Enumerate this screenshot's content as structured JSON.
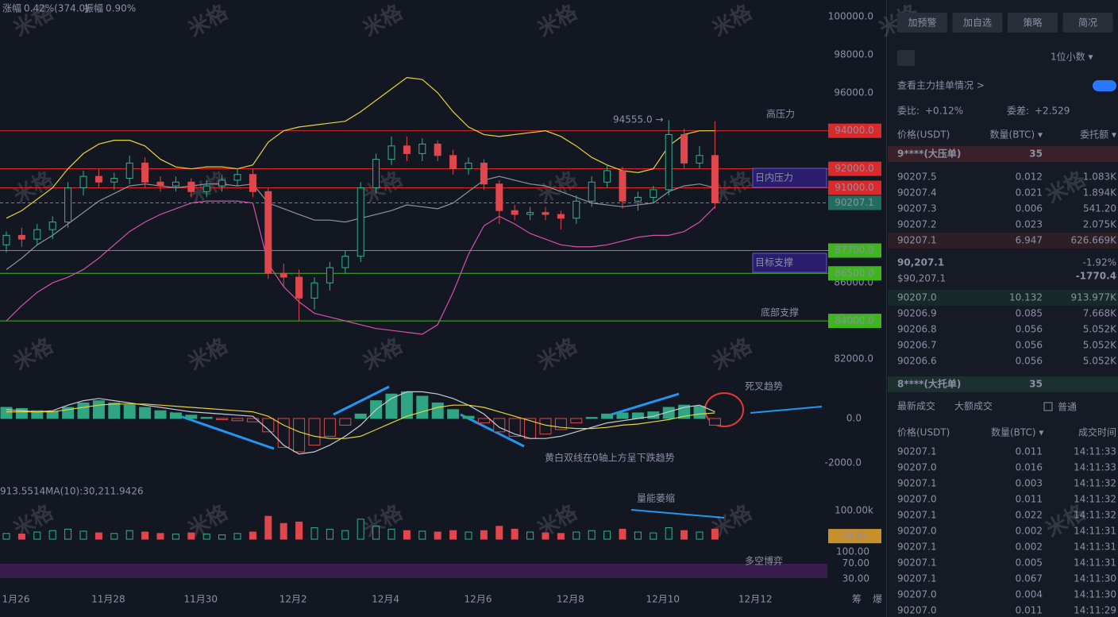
{
  "header": {
    "change_label": "涨幅",
    "change": "0.42%(374.0)",
    "amp_label": "振幅",
    "amp": "0.90%"
  },
  "watermark": "米格",
  "chart_data": {
    "type": "candlestick",
    "xlabels": [
      "1月26",
      "11月28",
      "11月30",
      "12月2",
      "12月4",
      "12月6",
      "12月8",
      "12月10",
      "12月12"
    ],
    "ohlc": [
      [
        88000,
        88700,
        87600,
        88500
      ],
      [
        88500,
        88900,
        87900,
        88300
      ],
      [
        88300,
        89100,
        88000,
        88800
      ],
      [
        88800,
        89500,
        88300,
        89200
      ],
      [
        89200,
        91300,
        88900,
        91000
      ],
      [
        91000,
        91900,
        90600,
        91600
      ],
      [
        91600,
        92000,
        91000,
        91300
      ],
      [
        91300,
        91800,
        90900,
        91500
      ],
      [
        91500,
        92700,
        91200,
        92300
      ],
      [
        92300,
        92600,
        91000,
        91300
      ],
      [
        91300,
        91600,
        90800,
        91100
      ],
      [
        91100,
        91600,
        90800,
        91300
      ],
      [
        91300,
        91500,
        90500,
        90800
      ],
      [
        90800,
        91400,
        90500,
        91100
      ],
      [
        91100,
        91700,
        90800,
        91400
      ],
      [
        91400,
        92000,
        91100,
        91700
      ],
      [
        91700,
        92000,
        90500,
        90800
      ],
      [
        90800,
        91000,
        86200,
        86500
      ],
      [
        86500,
        87000,
        85800,
        86300
      ],
      [
        86300,
        86700,
        84000,
        85200
      ],
      [
        85200,
        86300,
        84600,
        86000
      ],
      [
        86000,
        87100,
        85600,
        86800
      ],
      [
        86800,
        87700,
        86500,
        87400
      ],
      [
        87400,
        91300,
        87100,
        91000
      ],
      [
        91000,
        92800,
        90700,
        92500
      ],
      [
        92500,
        93700,
        92200,
        93200
      ],
      [
        93200,
        93700,
        92400,
        92800
      ],
      [
        92800,
        93600,
        92400,
        93300
      ],
      [
        93300,
        93500,
        92400,
        92700
      ],
      [
        92700,
        93000,
        91700,
        92000
      ],
      [
        92000,
        92600,
        91700,
        92300
      ],
      [
        92300,
        92500,
        90900,
        91200
      ],
      [
        91200,
        91400,
        89100,
        89800
      ],
      [
        89800,
        90100,
        89300,
        89600
      ],
      [
        89600,
        90000,
        89300,
        89700
      ],
      [
        89700,
        90000,
        89300,
        89600
      ],
      [
        89600,
        89800,
        88800,
        89400
      ],
      [
        89400,
        90600,
        89100,
        90300
      ],
      [
        90300,
        91600,
        90000,
        91300
      ],
      [
        91300,
        92200,
        91000,
        91900
      ],
      [
        91900,
        92100,
        89900,
        90300
      ],
      [
        90300,
        90800,
        89800,
        90500
      ],
      [
        90500,
        91100,
        90200,
        90900
      ],
      [
        90900,
        94555,
        90600,
        93800
      ],
      [
        93800,
        94100,
        92000,
        92300
      ],
      [
        92300,
        93200,
        92000,
        92700
      ],
      [
        92700,
        94500,
        89900,
        90207.1
      ]
    ],
    "boll_upper": [
      89400,
      89800,
      90400,
      91000,
      92000,
      92800,
      93300,
      93500,
      93500,
      93200,
      92500,
      92100,
      92000,
      92100,
      92100,
      92000,
      92200,
      93400,
      94000,
      94200,
      94300,
      94400,
      94500,
      95000,
      95600,
      96200,
      96800,
      96700,
      96000,
      95000,
      94200,
      93800,
      93700,
      93800,
      93900,
      94000,
      93700,
      93200,
      92600,
      92200,
      91900,
      91800,
      92000,
      93200,
      93800,
      94000,
      94000
    ],
    "boll_mid": [
      86700,
      87300,
      88000,
      88500,
      89100,
      89700,
      90300,
      90700,
      91100,
      91200,
      91100,
      91000,
      91100,
      91200,
      91200,
      91100,
      91200,
      90200,
      89900,
      89600,
      89300,
      89300,
      89200,
      89400,
      89600,
      89800,
      90100,
      90000,
      89900,
      90200,
      90800,
      91400,
      91600,
      91400,
      91200,
      91100,
      90800,
      90500,
      90200,
      90100,
      90000,
      90100,
      90200,
      90800,
      91100,
      91200,
      91000
    ],
    "boll_lower": [
      84000,
      84800,
      85500,
      86000,
      86300,
      86700,
      87300,
      88000,
      88700,
      89200,
      89600,
      89900,
      90200,
      90300,
      90300,
      90300,
      90200,
      87000,
      85800,
      85000,
      84400,
      84200,
      84000,
      83800,
      83600,
      83500,
      83400,
      83300,
      83800,
      85500,
      87500,
      89000,
      89500,
      89100,
      88600,
      88300,
      88000,
      87900,
      87900,
      88000,
      88200,
      88400,
      88500,
      88500,
      88700,
      89200,
      90000
    ],
    "yticks": [
      {
        "value": 100000,
        "label": "100000.0"
      },
      {
        "value": 98000,
        "label": "98000.0"
      },
      {
        "value": 96000,
        "label": "96000.0"
      },
      {
        "value": 86000,
        "label": "86000.0"
      },
      {
        "value": 82000,
        "label": "82000.0"
      }
    ],
    "levels": [
      {
        "value": 94000,
        "label": "94000.0",
        "color": "#d92b2b"
      },
      {
        "value": 92000,
        "label": "92000.0",
        "color": "#d92b2b"
      },
      {
        "value": 91000,
        "label": "91000.0",
        "color": "#d92b2b"
      },
      {
        "value": 90207.1,
        "label": "90207.1",
        "color": "#1f6e5e"
      },
      {
        "value": 87700,
        "label": "87700.0",
        "color": "#3fb51f"
      },
      {
        "value": 86500,
        "label": "86500.0",
        "color": "#3fb51f"
      },
      {
        "value": 84000,
        "label": "84000.0",
        "color": "#3fb51f"
      }
    ],
    "high_label": "94555.0 →",
    "zones": [
      "高压力",
      "日内压力",
      "目标支撑",
      "底部支撑"
    ],
    "macd_hist": [
      500,
      450,
      350,
      300,
      500,
      700,
      800,
      700,
      600,
      500,
      350,
      250,
      150,
      50,
      -50,
      -100,
      -150,
      -600,
      -1300,
      -1500,
      -1200,
      -800,
      -300,
      200,
      800,
      1100,
      1200,
      1000,
      700,
      400,
      100,
      -200,
      -600,
      -800,
      -900,
      -700,
      -500,
      -200,
      50,
      200,
      250,
      250,
      300,
      500,
      600,
      550,
      -300
    ],
    "macd_dif": [
      400,
      350,
      300,
      350,
      600,
      800,
      900,
      800,
      700,
      600,
      500,
      400,
      300,
      250,
      200,
      150,
      100,
      -500,
      -1200,
      -1600,
      -1500,
      -1200,
      -800,
      -300,
      400,
      900,
      1200,
      1200,
      1100,
      900,
      600,
      200,
      -400,
      -700,
      -900,
      -900,
      -800,
      -600,
      -400,
      -200,
      -100,
      0,
      100,
      300,
      500,
      600,
      300
    ],
    "macd_dea": [
      300,
      300,
      300,
      300,
      400,
      500,
      600,
      650,
      650,
      650,
      600,
      550,
      500,
      450,
      400,
      350,
      300,
      100,
      -300,
      -600,
      -800,
      -900,
      -900,
      -800,
      -500,
      -200,
      100,
      300,
      500,
      600,
      600,
      500,
      300,
      100,
      -100,
      -300,
      -400,
      -450,
      -450,
      -400,
      -300,
      -250,
      -150,
      -50,
      100,
      200,
      250
    ],
    "macd_ticks": [
      {
        "value": 0,
        "label": "0.0"
      },
      {
        "value": -2000,
        "label": "-2000.0"
      }
    ],
    "volume": [
      20000,
      18000,
      25000,
      30000,
      35000,
      28000,
      22000,
      20000,
      30000,
      25000,
      20000,
      18000,
      22000,
      18000,
      15000,
      20000,
      25000,
      80000,
      55000,
      60000,
      40000,
      35000,
      30000,
      70000,
      45000,
      35000,
      30000,
      28000,
      25000,
      30000,
      25000,
      30000,
      45000,
      35000,
      25000,
      22000,
      20000,
      25000,
      30000,
      28000,
      35000,
      25000,
      22000,
      40000,
      30000,
      25000,
      35000
    ],
    "vol_ticks": [
      {
        "value": 100000,
        "label": "100.00k"
      }
    ],
    "vol_current": {
      "value": 10800,
      "label": "10.8k"
    },
    "vol_legend": [
      "913.5514",
      "MA(10):30,211.9426"
    ],
    "kdj_ticks": [
      {
        "value": 100,
        "label": "100.00"
      },
      {
        "value": 70,
        "label": "70.00"
      },
      {
        "value": 30,
        "label": "30.00"
      }
    ],
    "notes": [
      "死叉趋势",
      "黄白双线在0轴上方呈下跌趋势",
      "量能萎缩",
      "多空博弈"
    ],
    "footer": [
      "筹",
      "爆"
    ]
  },
  "panel": {
    "buttons": [
      "加预警",
      "加自选",
      "策略",
      "简况"
    ],
    "decimals": "1位小数 ▾",
    "main_orders": "查看主力挂单情况 >",
    "ratio_label": "委比:",
    "ratio": "+0.12%",
    "diff_label": "委差:",
    "diff": "+2.529",
    "book_header": [
      "价格(USDT)",
      "数量(BTC) ▾",
      "委托额 ▾"
    ],
    "big_ask": [
      "9****(大压单)",
      "35"
    ],
    "asks": [
      [
        "90207.5",
        "0.012",
        "1.083K"
      ],
      [
        "90207.4",
        "0.021",
        "1.894K"
      ],
      [
        "90207.3",
        "0.006",
        "541.20"
      ],
      [
        "90207.2",
        "0.023",
        "2.075K"
      ],
      [
        "90207.1",
        "6.947",
        "626.669K"
      ]
    ],
    "last": "90,207.1",
    "last_usd": "$90,207.1",
    "pct": "-1.92%",
    "chg": "-1770.4",
    "bids": [
      [
        "90207.0",
        "10.132",
        "913.977K"
      ],
      [
        "90206.9",
        "0.085",
        "7.668K"
      ],
      [
        "90206.8",
        "0.056",
        "5.052K"
      ],
      [
        "90206.7",
        "0.056",
        "5.052K"
      ],
      [
        "90206.6",
        "0.056",
        "5.052K"
      ]
    ],
    "big_bid": [
      "8****(大托单)",
      "35"
    ],
    "tabs": [
      "最新成交",
      "大额成交"
    ],
    "normal": "普通",
    "trade_header": [
      "价格(USDT)",
      "数量(BTC) ▾",
      "成交时间"
    ],
    "trades": [
      [
        "90207.1",
        "0.011",
        "14:11:33",
        "buy"
      ],
      [
        "90207.0",
        "0.016",
        "14:11:33",
        "buy"
      ],
      [
        "90207.1",
        "0.003",
        "14:11:32",
        "buy"
      ],
      [
        "90207.0",
        "0.011",
        "14:11:32",
        "sell"
      ],
      [
        "90207.1",
        "0.022",
        "14:11:32",
        "buy"
      ],
      [
        "90207.0",
        "0.002",
        "14:11:31",
        "sell"
      ],
      [
        "90207.1",
        "0.002",
        "14:11:31",
        "buy"
      ],
      [
        "90207.1",
        "0.005",
        "14:11:31",
        "buy"
      ],
      [
        "90207.1",
        "0.067",
        "14:11:30",
        "buy"
      ],
      [
        "90207.0",
        "0.004",
        "14:11:30",
        "sell"
      ],
      [
        "90207.0",
        "0.011",
        "14:11:29",
        "sell"
      ]
    ]
  }
}
